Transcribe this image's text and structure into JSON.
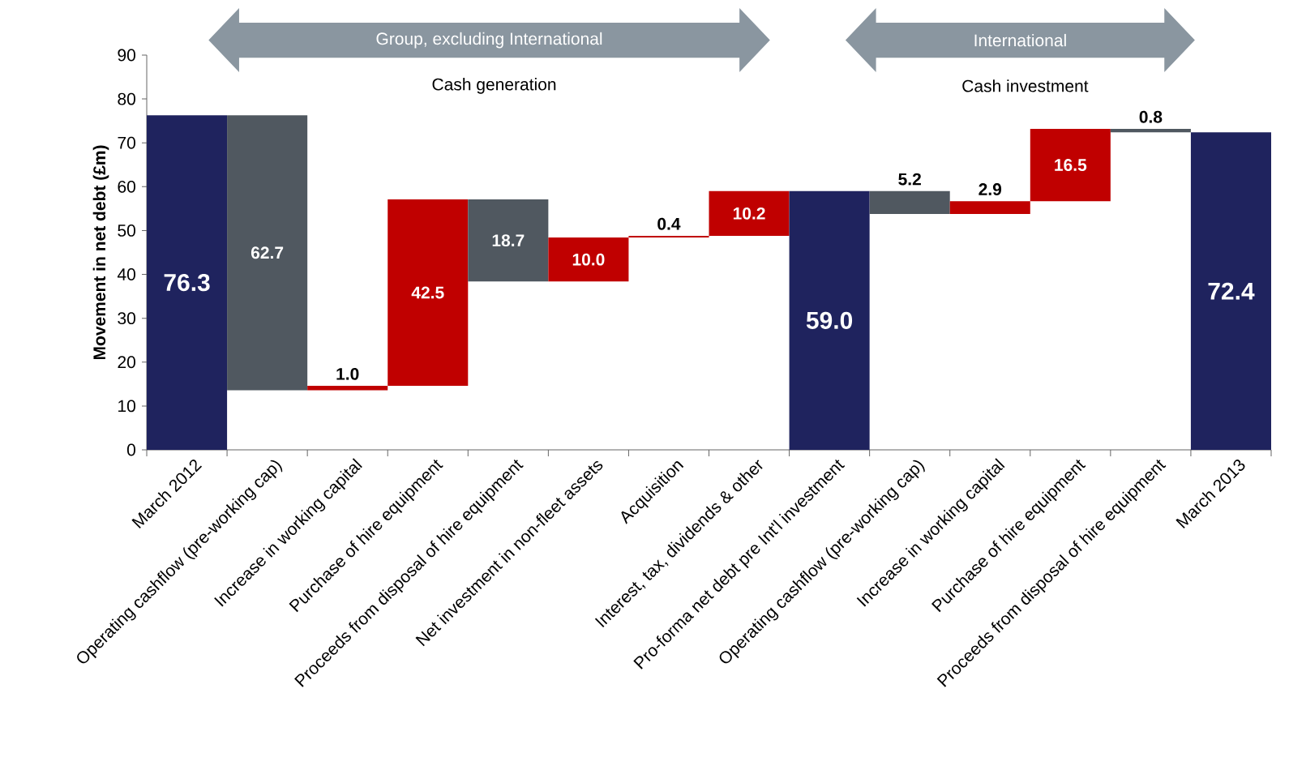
{
  "chart_data": {
    "type": "bar",
    "categories": [
      "March 2012",
      "Operating cashflow (pre-working cap)",
      "Increase in working capital",
      "Purchase of hire equipment",
      "Proceeds from disposal of hire equipment",
      "Net investment in non-fleet assets",
      "Acquisition",
      "Interest, tax, dividends & other",
      "Pro-forma net debt pre Int'l investment",
      "Operating cashflow (pre-working cap)",
      "Increase in working capital",
      "Purchase of hire equipment",
      "Proceeds from disposal of hire equipment",
      "March 2013"
    ],
    "values": [
      76.3,
      62.7,
      1.0,
      42.5,
      18.7,
      10.0,
      0.4,
      10.2,
      59.0,
      5.2,
      2.9,
      16.5,
      0.8,
      72.4
    ],
    "base": [
      0,
      13.6,
      13.6,
      14.6,
      38.4,
      38.4,
      48.4,
      48.8,
      0,
      53.8,
      53.8,
      56.7,
      72.4,
      0
    ],
    "colors": [
      "#1f235e",
      "#505860",
      "#c00000",
      "#c00000",
      "#505860",
      "#c00000",
      "#c00000",
      "#c00000",
      "#1f235e",
      "#505860",
      "#c00000",
      "#c00000",
      "#505860",
      "#1f235e"
    ],
    "ylabel": "Movement in net debt (£m)",
    "ylim": [
      0,
      90
    ],
    "yticks": [
      0,
      10,
      20,
      30,
      40,
      50,
      60,
      70,
      80,
      90
    ],
    "value_labels": [
      "76.3",
      "62.7",
      "1.0",
      "42.5",
      "18.7",
      "10.0",
      "0.4",
      "10.2",
      "59.0",
      "5.2",
      "2.9",
      "16.5",
      "0.8",
      "72.4"
    ],
    "annotations": [
      "Group, excluding International",
      "Cash generation",
      "International",
      "Cash investment"
    ]
  }
}
